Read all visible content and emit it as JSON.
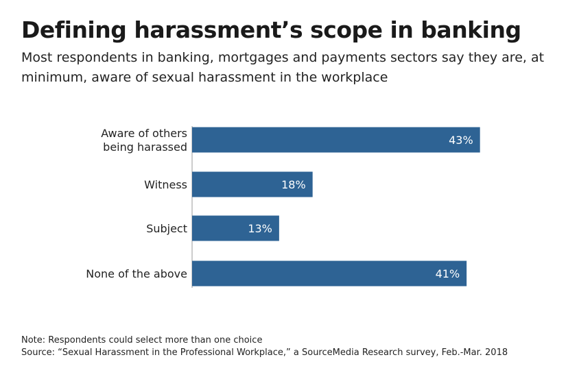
{
  "title": "Defining harassment’s scope in banking",
  "subtitle": "Most respondents in banking, mortgages and payments sectors say they are, at minimum, aware of sexual harassment in the workplace",
  "note": "Note: Respondents could select more than one choice",
  "source": "Source: “Sexual Harassment in the Professional Workplace,” a SourceMedia Research survey, Feb.-Mar. 2018",
  "colors": {
    "bar": "#2e6394",
    "bar_label": "#ffffff",
    "axis": "#999999"
  },
  "chart_data": {
    "type": "bar",
    "orientation": "horizontal",
    "categories": [
      [
        "Aware of others",
        "being harassed"
      ],
      [
        "Witness"
      ],
      [
        "Subject"
      ],
      [
        "None of the above"
      ]
    ],
    "values": [
      43,
      18,
      13,
      41
    ],
    "value_labels": [
      "43%",
      "18%",
      "13%",
      "41%"
    ],
    "xlim": [
      0,
      50
    ],
    "grid": false,
    "legend": "none"
  }
}
